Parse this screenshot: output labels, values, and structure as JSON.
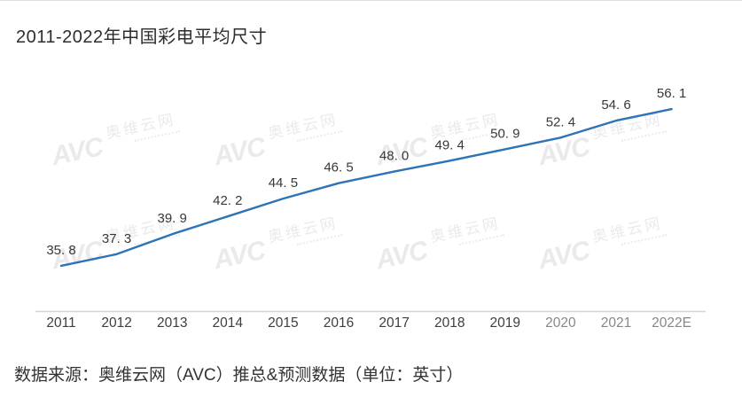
{
  "page": {
    "title": "2011-2022年中国彩电平均尺寸",
    "source_note": "数据来源：奥维云网（AVC）推总&预测数据（单位：英寸）"
  },
  "watermark": {
    "brand": "AVC",
    "name": "奥维云网"
  },
  "chart_data": {
    "type": "line",
    "title": "2011-2022年中国彩电平均尺寸",
    "x": [
      "2011",
      "2012",
      "2013",
      "2014",
      "2015",
      "2016",
      "2017",
      "2018",
      "2019",
      "2020",
      "2021",
      "2022E"
    ],
    "values": [
      35.8,
      37.3,
      39.9,
      42.2,
      44.5,
      46.5,
      48.0,
      49.4,
      50.9,
      52.4,
      54.6,
      56.1
    ],
    "xlabel": "",
    "ylabel": "",
    "unit": "英寸",
    "ylim": [
      34,
      58
    ],
    "grid": false,
    "legend": false,
    "data_labels": true,
    "line_color": "#2d73b6",
    "axis_color": "#d6d6d6"
  }
}
